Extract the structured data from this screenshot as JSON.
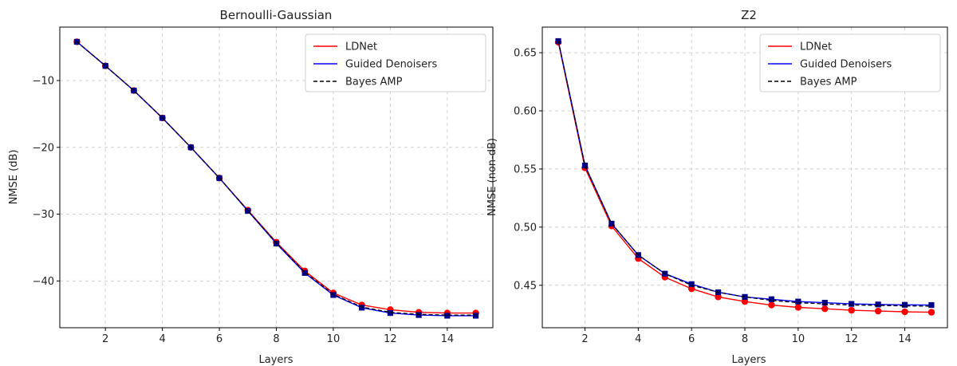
{
  "chart_data": [
    {
      "type": "line",
      "title": "Bernoulli-Gaussian",
      "xlabel": "Layers",
      "ylabel": "NMSE (dB)",
      "xlim": [
        0.4,
        15.6
      ],
      "ylim": [
        -47,
        -2
      ],
      "xticks": [
        2,
        4,
        6,
        8,
        10,
        12,
        14
      ],
      "yticks": [
        -40,
        -30,
        -20,
        -10
      ],
      "ytick_labels": [
        "−40",
        "−30",
        "−20",
        "−10"
      ],
      "grid": true,
      "legend_position": "top-right",
      "x": [
        1,
        2,
        3,
        4,
        5,
        6,
        7,
        8,
        9,
        10,
        11,
        12,
        13,
        14,
        15
      ],
      "series": [
        {
          "name": "LDNet",
          "color": "#ff0000",
          "style": "solid",
          "marker": "circle",
          "values": [
            -4.2,
            -7.8,
            -11.5,
            -15.6,
            -20.0,
            -24.6,
            -29.4,
            -34.2,
            -38.5,
            -41.8,
            -43.6,
            -44.3,
            -44.7,
            -44.8,
            -44.8
          ]
        },
        {
          "name": "Guided Denoisers",
          "color": "#0000ff",
          "style": "solid",
          "marker": "square",
          "values": [
            -4.2,
            -7.8,
            -11.5,
            -15.6,
            -20.0,
            -24.6,
            -29.5,
            -34.4,
            -38.8,
            -42.1,
            -44.0,
            -44.8,
            -45.1,
            -45.2,
            -45.2
          ]
        },
        {
          "name": "Bayes AMP",
          "color": "#000000",
          "style": "dashed",
          "marker": "none",
          "values": [
            -4.2,
            -7.8,
            -11.5,
            -15.6,
            -20.0,
            -24.6,
            -29.5,
            -34.3,
            -38.7,
            -42.0,
            -43.9,
            -44.7,
            -45.0,
            -45.1,
            -45.1
          ]
        }
      ]
    },
    {
      "type": "line",
      "title": "Z2",
      "xlabel": "Layers",
      "ylabel": "NMSE (non-dB)",
      "xlim": [
        0.4,
        15.6
      ],
      "ylim": [
        0.4135,
        0.672
      ],
      "xticks": [
        2,
        4,
        6,
        8,
        10,
        12,
        14
      ],
      "yticks": [
        0.45,
        0.5,
        0.55,
        0.6,
        0.65
      ],
      "ytick_labels": [
        "0.45",
        "0.50",
        "0.55",
        "0.60",
        "0.65"
      ],
      "grid": true,
      "legend_position": "top-right",
      "x": [
        1,
        2,
        3,
        4,
        5,
        6,
        7,
        8,
        9,
        10,
        11,
        12,
        13,
        14,
        15
      ],
      "series": [
        {
          "name": "LDNet",
          "color": "#ff0000",
          "style": "solid",
          "marker": "circle",
          "values": [
            0.659,
            0.551,
            0.501,
            0.473,
            0.457,
            0.447,
            0.44,
            0.436,
            0.433,
            0.431,
            0.4298,
            0.4285,
            0.4278,
            0.4272,
            0.4268
          ]
        },
        {
          "name": "Guided Denoisers",
          "color": "#0000ff",
          "style": "solid",
          "marker": "square",
          "values": [
            0.66,
            0.553,
            0.503,
            0.476,
            0.46,
            0.451,
            0.444,
            0.44,
            0.438,
            0.436,
            0.435,
            0.434,
            0.4335,
            0.4332,
            0.433
          ]
        },
        {
          "name": "Bayes AMP",
          "color": "#000000",
          "style": "dashed",
          "marker": "none",
          "values": [
            0.66,
            0.553,
            0.503,
            0.476,
            0.46,
            0.45,
            0.444,
            0.44,
            0.437,
            0.435,
            0.434,
            0.433,
            0.4327,
            0.4323,
            0.432
          ]
        }
      ]
    }
  ]
}
